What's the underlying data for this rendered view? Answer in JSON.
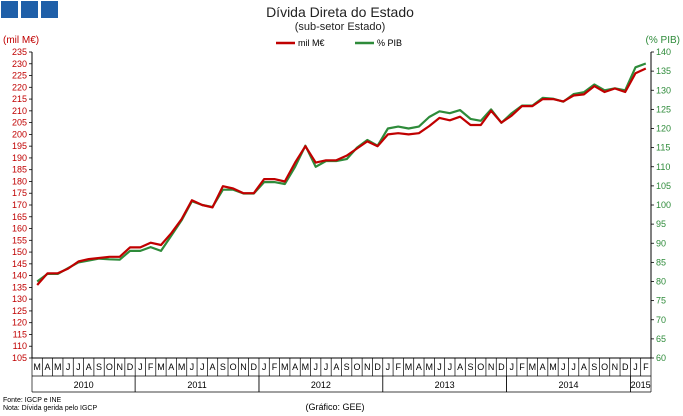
{
  "header": {
    "logo_icon": "gee-logo-icon",
    "title": "Dívida Direta do Estado",
    "subtitle": "(sub-setor  Estado)"
  },
  "footer": {
    "source": "Fonte: IGCP e INE",
    "note": "Nota: Dívida gerida pelo IGCP",
    "credit": "(Gráfico: GEE)"
  },
  "colors": {
    "red": "#c00000",
    "green": "#2e8b3a",
    "logo": "#1f5fa8"
  },
  "chart_data": {
    "type": "line",
    "title": "Dívida Direta do Estado",
    "subtitle": "(sub-setor  Estado)",
    "ylabel_left": "(mil M€)",
    "ylabel_right": "(% PIB)",
    "ylim_left": [
      105,
      235
    ],
    "ylim_right": [
      60,
      140
    ],
    "grid": false,
    "legend": {
      "placement": "top-center",
      "entries": [
        "mil M€",
        "% PIB"
      ]
    },
    "yticks_left": [
      105,
      110,
      115,
      120,
      125,
      130,
      135,
      140,
      145,
      150,
      155,
      160,
      165,
      170,
      175,
      180,
      185,
      190,
      195,
      200,
      205,
      210,
      215,
      220,
      225,
      230,
      235
    ],
    "yticks_right": [
      60,
      65,
      70,
      75,
      80,
      85,
      90,
      95,
      100,
      105,
      110,
      115,
      120,
      125,
      130,
      135,
      140
    ],
    "x_months": [
      "M",
      "A",
      "M",
      "J",
      "J",
      "A",
      "S",
      "O",
      "N",
      "D",
      "J",
      "F",
      "M",
      "A",
      "M",
      "J",
      "J",
      "A",
      "S",
      "O",
      "N",
      "D",
      "J",
      "F",
      "M",
      "A",
      "M",
      "J",
      "J",
      "A",
      "S",
      "O",
      "N",
      "D",
      "J",
      "F",
      "M",
      "A",
      "M",
      "J",
      "J",
      "A",
      "S",
      "O",
      "N",
      "D",
      "J",
      "F",
      "M",
      "A",
      "M",
      "J",
      "J",
      "A",
      "S",
      "O",
      "N",
      "D",
      "J",
      "F"
    ],
    "x_years": [
      {
        "label": "2010",
        "start": 0,
        "end": 10
      },
      {
        "label": "2011",
        "start": 10,
        "end": 22
      },
      {
        "label": "2012",
        "start": 22,
        "end": 34
      },
      {
        "label": "2013",
        "start": 34,
        "end": 46
      },
      {
        "label": "2014",
        "start": 46,
        "end": 58
      },
      {
        "label": "2015",
        "start": 58,
        "end": 60
      }
    ],
    "series": [
      {
        "name": "mil M€",
        "axis": "left",
        "color": "#c00000",
        "values": [
          136,
          141,
          141,
          143,
          146,
          147,
          147.5,
          148,
          148,
          152,
          152,
          154,
          153,
          158,
          164,
          172,
          170,
          169,
          178,
          177,
          175,
          175,
          181,
          181,
          180,
          188,
          195,
          188,
          189,
          189,
          191,
          194,
          197,
          195,
          200,
          200.5,
          200,
          200.5,
          203.5,
          207,
          206,
          207.5,
          204,
          204,
          210,
          205,
          208,
          212,
          212,
          215,
          215,
          214,
          216.5,
          217,
          220.5,
          218,
          219.5,
          218,
          226,
          228
        ]
      },
      {
        "name": "% PIB",
        "axis": "right",
        "color": "#2e8b3a",
        "values": [
          80,
          82,
          82,
          83.5,
          85,
          85.5,
          86,
          85.8,
          85.7,
          88,
          88,
          89,
          88,
          92,
          96,
          101,
          100,
          99.5,
          104,
          104,
          103,
          103,
          106,
          106,
          105.5,
          110,
          115.5,
          110,
          111.5,
          111.5,
          112,
          115,
          117,
          115.5,
          120,
          120.5,
          120,
          120.5,
          123,
          124.5,
          124,
          124.8,
          122.5,
          122,
          125,
          121.5,
          124,
          126,
          126,
          128,
          127.8,
          127,
          129,
          129.5,
          131.5,
          130,
          130.5,
          130,
          136,
          137
        ]
      }
    ]
  }
}
